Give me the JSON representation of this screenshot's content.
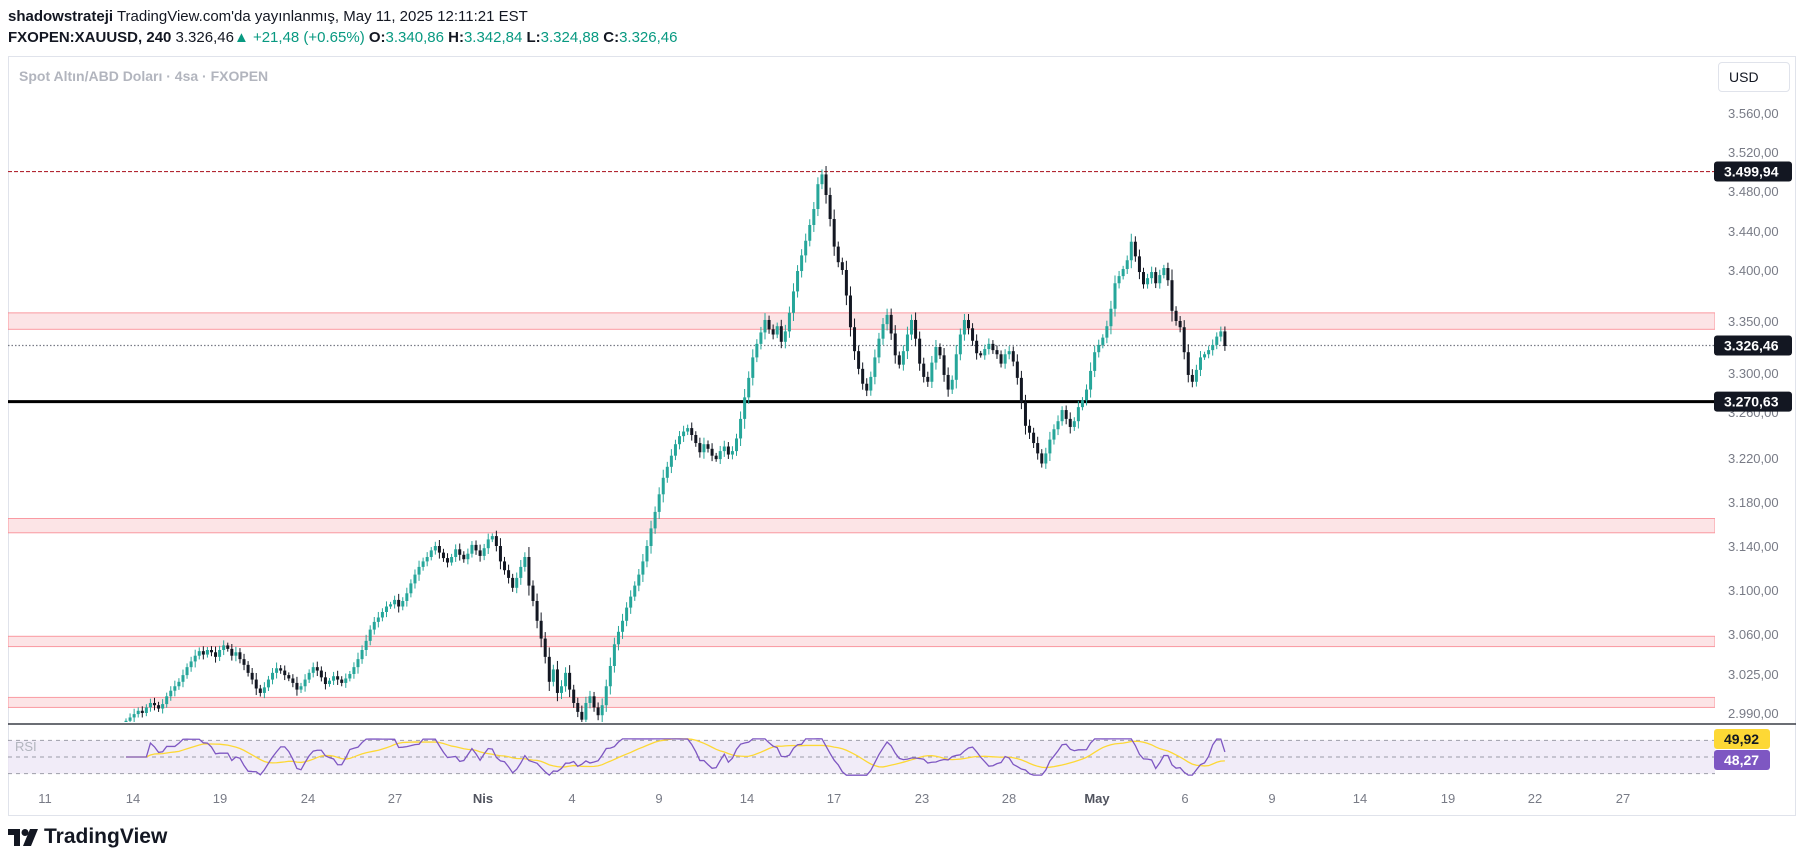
{
  "header": {
    "author": "shadowstrateji",
    "published": "TradingView.com'da yayınlanmış, May 11, 2025 12:11:21 EST",
    "symbol": "FXOPEN:XAUUSD, 240",
    "last": "3.326,46",
    "change": "▲ +21,48 (+0.65%)",
    "o_label": "O:",
    "o_value": "3.340,86",
    "h_label": "H:",
    "h_value": "3.342,84",
    "l_label": "L:",
    "l_value": "3.324,88",
    "c_label": "C:",
    "c_value": "3.326,46"
  },
  "legend": "Spot Altın/ABD Doları · 4sa · FXOPEN",
  "currency": "USD",
  "brand": "TradingView",
  "colors": {
    "up": "#26a69a",
    "down": "#131722",
    "zone": "#f7525f",
    "rsi": "#7e57c2",
    "rsi_ma": "#fdd835"
  },
  "chart_data": {
    "type": "candlestick",
    "x_ticks": [
      "11",
      "14",
      "19",
      "24",
      "27",
      "Nis",
      "4",
      "9",
      "14",
      "17",
      "23",
      "28",
      "May",
      "6",
      "9",
      "14",
      "19",
      "22",
      "27"
    ],
    "y_ticks": [
      "3.560,00",
      "3.520,00",
      "3.480,00",
      "3.440,00",
      "3.400,00",
      "3.350,00",
      "3.300,00",
      "3.260,00",
      "3.220,00",
      "3.180,00",
      "3.140,00",
      "3.100,00",
      "3.060,00",
      "3.025,00",
      "2.990,00"
    ],
    "y_tick_values": [
      3560,
      3520,
      3480,
      3440,
      3400,
      3350,
      3300,
      3260,
      3220,
      3180,
      3140,
      3100,
      3060,
      3025,
      2990
    ],
    "price_labels": [
      {
        "text": "3.499,94",
        "value": 3499.94,
        "style": "dark"
      },
      {
        "text": "3.326,46",
        "value": 3326.46,
        "style": "dark"
      },
      {
        "text": "3.270,63",
        "value": 3270.63,
        "style": "dark"
      }
    ],
    "horizontal_lines": [
      {
        "value": 3499.94,
        "style": "dashed",
        "color": "#b22833"
      },
      {
        "value": 3270.63,
        "style": "solid",
        "color": "#000000"
      },
      {
        "value": 3326.46,
        "style": "dotted",
        "color": "#787b86"
      }
    ],
    "zones": [
      {
        "from": 3342,
        "to": 3358
      },
      {
        "from": 3152,
        "to": 3165
      },
      {
        "from": 3049,
        "to": 3058
      },
      {
        "from": 2995,
        "to": 3004
      }
    ],
    "closes": [
      2983,
      2986,
      2989,
      2992,
      2990,
      2995,
      2999,
      2997,
      2994,
      2998,
      3005,
      3010,
      3014,
      3018,
      3024,
      3031,
      3036,
      3041,
      3045,
      3042,
      3046,
      3044,
      3040,
      3046,
      3050,
      3047,
      3041,
      3044,
      3038,
      3033,
      3026,
      3020,
      3012,
      3008,
      3013,
      3020,
      3026,
      3030,
      3028,
      3024,
      3021,
      3017,
      3011,
      3014,
      3020,
      3026,
      3031,
      3028,
      3022,
      3016,
      3019,
      3023,
      3020,
      3017,
      3021,
      3025,
      3031,
      3038,
      3046,
      3054,
      3064,
      3071,
      3075,
      3080,
      3085,
      3087,
      3091,
      3085,
      3090,
      3097,
      3106,
      3114,
      3121,
      3126,
      3130,
      3136,
      3140,
      3134,
      3129,
      3125,
      3130,
      3137,
      3132,
      3128,
      3133,
      3141,
      3136,
      3131,
      3138,
      3146,
      3149,
      3140,
      3126,
      3118,
      3111,
      3102,
      3111,
      3121,
      3130,
      3104,
      3090,
      3072,
      3056,
      3040,
      3018,
      3029,
      3008,
      3014,
      3026,
      3011,
      2999,
      2991,
      2984,
      2999,
      3005,
      2995,
      2988,
      2997,
      3014,
      3032,
      3051,
      3062,
      3072,
      3084,
      3094,
      3104,
      3114,
      3126,
      3140,
      3156,
      3171,
      3187,
      3202,
      3212,
      3222,
      3232,
      3239,
      3243,
      3246,
      3240,
      3233,
      3225,
      3232,
      3228,
      3222,
      3219,
      3226,
      3230,
      3223,
      3226,
      3237,
      3254,
      3275,
      3295,
      3315,
      3328,
      3339,
      3351,
      3342,
      3337,
      3345,
      3330,
      3340,
      3358,
      3379,
      3399,
      3415,
      3430,
      3446,
      3462,
      3487,
      3497,
      3476,
      3452,
      3424,
      3408,
      3400,
      3375,
      3344,
      3321,
      3304,
      3289,
      3282,
      3296,
      3315,
      3333,
      3347,
      3356,
      3338,
      3317,
      3308,
      3321,
      3337,
      3351,
      3333,
      3309,
      3296,
      3291,
      3310,
      3325,
      3317,
      3298,
      3283,
      3293,
      3318,
      3337,
      3351,
      3343,
      3331,
      3319,
      3317,
      3323,
      3328,
      3322,
      3318,
      3309,
      3318,
      3321,
      3311,
      3295,
      3270,
      3248,
      3242,
      3233,
      3224,
      3215,
      3224,
      3236,
      3245,
      3252,
      3262,
      3254,
      3247,
      3252,
      3265,
      3272,
      3283,
      3302,
      3320,
      3327,
      3334,
      3345,
      3362,
      3387,
      3394,
      3401,
      3410,
      3429,
      3414,
      3398,
      3386,
      3392,
      3398,
      3387,
      3395,
      3402,
      3390,
      3360,
      3350,
      3344,
      3320,
      3298,
      3291,
      3303,
      3315,
      3318,
      3322,
      3327,
      3335,
      3340,
      3326
    ],
    "rsi": {
      "label": "RSI",
      "value_text": "48,27",
      "ma_text": "49,92",
      "value": 48.27,
      "ma": 49.92,
      "band": [
        30,
        70
      ]
    }
  }
}
